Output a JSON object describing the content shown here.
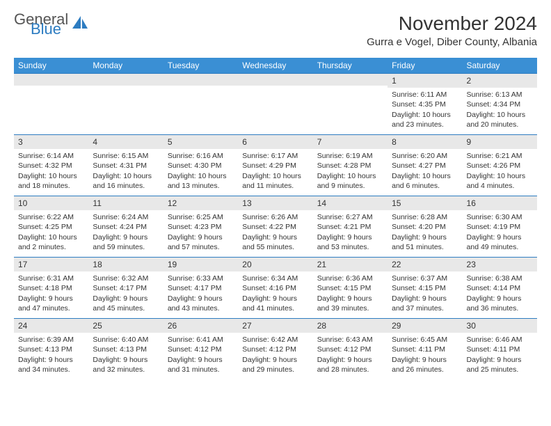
{
  "brand": {
    "line1": "General",
    "line2": "Blue"
  },
  "title": "November 2024",
  "location": "Gurra e Vogel, Diber County, Albania",
  "colors": {
    "header_bg": "#3a8fd4",
    "header_text": "#ffffff",
    "day_num_bg": "#e8e8e8",
    "divider": "#2d7cc1",
    "logo_accent": "#2d7cc1"
  },
  "weekdays": [
    "Sunday",
    "Monday",
    "Tuesday",
    "Wednesday",
    "Thursday",
    "Friday",
    "Saturday"
  ],
  "days": [
    {
      "n": "",
      "lines": []
    },
    {
      "n": "",
      "lines": []
    },
    {
      "n": "",
      "lines": []
    },
    {
      "n": "",
      "lines": []
    },
    {
      "n": "",
      "lines": []
    },
    {
      "n": "1",
      "lines": [
        "Sunrise: 6:11 AM",
        "Sunset: 4:35 PM",
        "Daylight: 10 hours and 23 minutes."
      ]
    },
    {
      "n": "2",
      "lines": [
        "Sunrise: 6:13 AM",
        "Sunset: 4:34 PM",
        "Daylight: 10 hours and 20 minutes."
      ]
    },
    {
      "n": "3",
      "lines": [
        "Sunrise: 6:14 AM",
        "Sunset: 4:32 PM",
        "Daylight: 10 hours and 18 minutes."
      ]
    },
    {
      "n": "4",
      "lines": [
        "Sunrise: 6:15 AM",
        "Sunset: 4:31 PM",
        "Daylight: 10 hours and 16 minutes."
      ]
    },
    {
      "n": "5",
      "lines": [
        "Sunrise: 6:16 AM",
        "Sunset: 4:30 PM",
        "Daylight: 10 hours and 13 minutes."
      ]
    },
    {
      "n": "6",
      "lines": [
        "Sunrise: 6:17 AM",
        "Sunset: 4:29 PM",
        "Daylight: 10 hours and 11 minutes."
      ]
    },
    {
      "n": "7",
      "lines": [
        "Sunrise: 6:19 AM",
        "Sunset: 4:28 PM",
        "Daylight: 10 hours and 9 minutes."
      ]
    },
    {
      "n": "8",
      "lines": [
        "Sunrise: 6:20 AM",
        "Sunset: 4:27 PM",
        "Daylight: 10 hours and 6 minutes."
      ]
    },
    {
      "n": "9",
      "lines": [
        "Sunrise: 6:21 AM",
        "Sunset: 4:26 PM",
        "Daylight: 10 hours and 4 minutes."
      ]
    },
    {
      "n": "10",
      "lines": [
        "Sunrise: 6:22 AM",
        "Sunset: 4:25 PM",
        "Daylight: 10 hours and 2 minutes."
      ]
    },
    {
      "n": "11",
      "lines": [
        "Sunrise: 6:24 AM",
        "Sunset: 4:24 PM",
        "Daylight: 9 hours and 59 minutes."
      ]
    },
    {
      "n": "12",
      "lines": [
        "Sunrise: 6:25 AM",
        "Sunset: 4:23 PM",
        "Daylight: 9 hours and 57 minutes."
      ]
    },
    {
      "n": "13",
      "lines": [
        "Sunrise: 6:26 AM",
        "Sunset: 4:22 PM",
        "Daylight: 9 hours and 55 minutes."
      ]
    },
    {
      "n": "14",
      "lines": [
        "Sunrise: 6:27 AM",
        "Sunset: 4:21 PM",
        "Daylight: 9 hours and 53 minutes."
      ]
    },
    {
      "n": "15",
      "lines": [
        "Sunrise: 6:28 AM",
        "Sunset: 4:20 PM",
        "Daylight: 9 hours and 51 minutes."
      ]
    },
    {
      "n": "16",
      "lines": [
        "Sunrise: 6:30 AM",
        "Sunset: 4:19 PM",
        "Daylight: 9 hours and 49 minutes."
      ]
    },
    {
      "n": "17",
      "lines": [
        "Sunrise: 6:31 AM",
        "Sunset: 4:18 PM",
        "Daylight: 9 hours and 47 minutes."
      ]
    },
    {
      "n": "18",
      "lines": [
        "Sunrise: 6:32 AM",
        "Sunset: 4:17 PM",
        "Daylight: 9 hours and 45 minutes."
      ]
    },
    {
      "n": "19",
      "lines": [
        "Sunrise: 6:33 AM",
        "Sunset: 4:17 PM",
        "Daylight: 9 hours and 43 minutes."
      ]
    },
    {
      "n": "20",
      "lines": [
        "Sunrise: 6:34 AM",
        "Sunset: 4:16 PM",
        "Daylight: 9 hours and 41 minutes."
      ]
    },
    {
      "n": "21",
      "lines": [
        "Sunrise: 6:36 AM",
        "Sunset: 4:15 PM",
        "Daylight: 9 hours and 39 minutes."
      ]
    },
    {
      "n": "22",
      "lines": [
        "Sunrise: 6:37 AM",
        "Sunset: 4:15 PM",
        "Daylight: 9 hours and 37 minutes."
      ]
    },
    {
      "n": "23",
      "lines": [
        "Sunrise: 6:38 AM",
        "Sunset: 4:14 PM",
        "Daylight: 9 hours and 36 minutes."
      ]
    },
    {
      "n": "24",
      "lines": [
        "Sunrise: 6:39 AM",
        "Sunset: 4:13 PM",
        "Daylight: 9 hours and 34 minutes."
      ]
    },
    {
      "n": "25",
      "lines": [
        "Sunrise: 6:40 AM",
        "Sunset: 4:13 PM",
        "Daylight: 9 hours and 32 minutes."
      ]
    },
    {
      "n": "26",
      "lines": [
        "Sunrise: 6:41 AM",
        "Sunset: 4:12 PM",
        "Daylight: 9 hours and 31 minutes."
      ]
    },
    {
      "n": "27",
      "lines": [
        "Sunrise: 6:42 AM",
        "Sunset: 4:12 PM",
        "Daylight: 9 hours and 29 minutes."
      ]
    },
    {
      "n": "28",
      "lines": [
        "Sunrise: 6:43 AM",
        "Sunset: 4:12 PM",
        "Daylight: 9 hours and 28 minutes."
      ]
    },
    {
      "n": "29",
      "lines": [
        "Sunrise: 6:45 AM",
        "Sunset: 4:11 PM",
        "Daylight: 9 hours and 26 minutes."
      ]
    },
    {
      "n": "30",
      "lines": [
        "Sunrise: 6:46 AM",
        "Sunset: 4:11 PM",
        "Daylight: 9 hours and 25 minutes."
      ]
    }
  ]
}
